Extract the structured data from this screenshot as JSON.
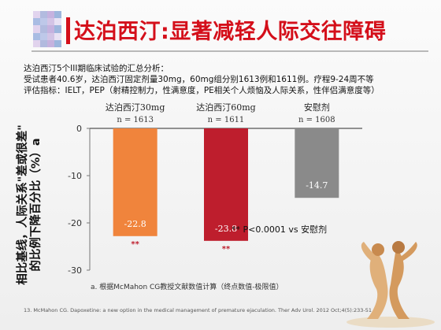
{
  "slide": {
    "title": "达泊西汀:显著减轻人际交往障碍",
    "intro": [
      "达泊西汀5个III期临床试验的汇总分析：",
      "受试患者40.6岁，达泊西汀固定剂量30mg，60mg组分别1613例和1611例。疗程9-24周不等",
      "评估指标：IELT，PEP（射精控制力，性满意度，PE相关个人烦恼及人际关系，性伴侣满意度等）"
    ],
    "significance_note": "** P<0.0001 vs 安慰剂",
    "footnote": "a. 根据McMahon CG教授文献数值计算（终点数值-极限值）",
    "reference": "13. McMahon CG. Dapoxetine: a new option in the medical management of premature ejaculation. Ther Adv Urol. 2012 Oct;4(5):233-51"
  },
  "chart_data": {
    "type": "bar",
    "ylabel_lines": [
      "相比基线，人际关系\"差或很差\"",
      "的比例下降百分比（%）a"
    ],
    "categories": [
      "达泊西汀30mg",
      "达泊西汀60mg",
      "安慰剂"
    ],
    "category_n": [
      "n = 1613",
      "n = 1611",
      "n = 1608"
    ],
    "values": [
      -22.8,
      -23.8,
      -14.7
    ],
    "value_labels": [
      "-22.8",
      "-23.8",
      "-14.7"
    ],
    "significance": [
      "**",
      "**",
      ""
    ],
    "colors": [
      "#f0843c",
      "#be1e2d",
      "#8a8a8a"
    ],
    "ylim": [
      -30,
      0
    ],
    "yticks": [
      0,
      -10,
      -20,
      -30
    ],
    "ytick_labels": [
      "0",
      "-10",
      "-20",
      "-30"
    ]
  }
}
